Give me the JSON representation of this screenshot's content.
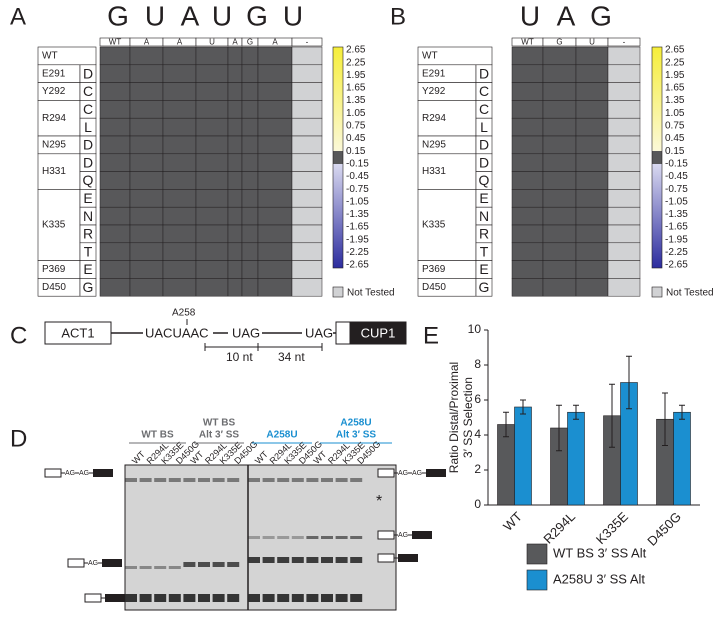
{
  "panels": {
    "A": {
      "label": "A",
      "nucleotides": [
        "G",
        "U",
        "A",
        "U",
        "G",
        "U"
      ],
      "columns": [
        "WT",
        "A",
        "A",
        "U",
        "A",
        "G",
        "A",
        "-"
      ],
      "rows": [
        {
          "name": "WT",
          "mutants": []
        },
        {
          "name": "E291",
          "mutants": [
            "D"
          ]
        },
        {
          "name": "Y292",
          "mutants": [
            "C"
          ]
        },
        {
          "name": "R294",
          "mutants": [
            "C",
            "L"
          ]
        },
        {
          "name": "N295",
          "mutants": [
            "D"
          ]
        },
        {
          "name": "H331",
          "mutants": [
            "D",
            "Q"
          ]
        },
        {
          "name": "K335",
          "mutants": [
            "E",
            "N",
            "R",
            "T"
          ]
        },
        {
          "name": "P369",
          "mutants": [
            "E"
          ]
        },
        {
          "name": "D450",
          "mutants": [
            "G"
          ]
        }
      ],
      "colorbar_ticks": [
        2.65,
        2.25,
        1.95,
        1.65,
        1.35,
        1.05,
        0.75,
        0.45,
        0.15,
        -0.15,
        -0.45,
        -0.75,
        -1.05,
        -1.35,
        -1.65,
        -1.95,
        -2.25,
        -2.65
      ],
      "not_tested": "Not Tested"
    },
    "B": {
      "label": "B",
      "nucleotides": [
        "U",
        "A",
        "G"
      ],
      "columns": [
        "WT",
        "G",
        "U",
        "-"
      ],
      "rows": [
        {
          "name": "WT",
          "mutants": []
        },
        {
          "name": "E291",
          "mutants": [
            "D"
          ]
        },
        {
          "name": "Y292",
          "mutants": [
            "C"
          ]
        },
        {
          "name": "R294",
          "mutants": [
            "C",
            "L"
          ]
        },
        {
          "name": "N295",
          "mutants": [
            "D"
          ]
        },
        {
          "name": "H331",
          "mutants": [
            "D",
            "Q"
          ]
        },
        {
          "name": "K335",
          "mutants": [
            "E",
            "N",
            "R",
            "T"
          ]
        },
        {
          "name": "P369",
          "mutants": [
            "E"
          ]
        },
        {
          "name": "D450",
          "mutants": [
            "G"
          ]
        }
      ],
      "colorbar_ticks": [
        2.65,
        2.25,
        1.95,
        1.65,
        1.35,
        1.05,
        0.75,
        0.45,
        0.15,
        -0.15,
        -0.45,
        -0.75,
        -1.05,
        -1.35,
        -1.65,
        -1.95,
        -2.25,
        -2.65
      ],
      "not_tested": "Not Tested"
    },
    "C": {
      "label": "C",
      "exon1": "ACT1",
      "branch_seq": "UACUAAC",
      "branch_site": "A258",
      "ag1": "UAG",
      "ag2": "UAG",
      "reporter": "CUP1",
      "dist1": "10 nt",
      "dist2": "34 nt"
    },
    "D": {
      "label": "D",
      "groups": [
        {
          "title": [
            "WT BS"
          ],
          "color": "#6d6e71",
          "lanes": [
            "WT",
            "R294L",
            "K335E",
            "D450G"
          ]
        },
        {
          "title": [
            "WT BS",
            "Alt 3′ SS"
          ],
          "color": "#6d6e71",
          "lanes": [
            "WT",
            "R294L",
            "K335E",
            "D450G"
          ]
        },
        {
          "title": [
            "A258U"
          ],
          "color": "#1a8fd0",
          "lanes": [
            "WT",
            "R294L",
            "K335E",
            "D450G"
          ]
        },
        {
          "title": [
            "A258U",
            "Alt 3′ SS"
          ],
          "color": "#1a8fd0",
          "lanes": [
            "WT",
            "R294L",
            "K335E",
            "D450G"
          ]
        }
      ],
      "ag": "AG",
      "star": "*"
    },
    "E": {
      "label": "E"
    }
  },
  "chart_data": {
    "type": "bar",
    "ylabel": [
      "Ratio Distal/Proximal",
      "3′ SS Selection"
    ],
    "categories": [
      "WT",
      "R294L",
      "K335E",
      "D450G"
    ],
    "series": [
      {
        "name": "WT BS 3′ SS Alt",
        "color": "#58595b",
        "values": [
          4.6,
          4.4,
          5.1,
          4.9
        ],
        "errors": [
          0.7,
          1.3,
          1.8,
          1.5
        ]
      },
      {
        "name": "A258U 3′ SS Alt",
        "color": "#1b8fd0",
        "values": [
          5.6,
          5.3,
          7.0,
          5.3
        ],
        "errors": [
          0.4,
          0.4,
          1.5,
          0.4
        ]
      }
    ],
    "ylim": [
      0,
      10
    ],
    "yticks": [
      0,
      2,
      4,
      6,
      8,
      10
    ]
  }
}
